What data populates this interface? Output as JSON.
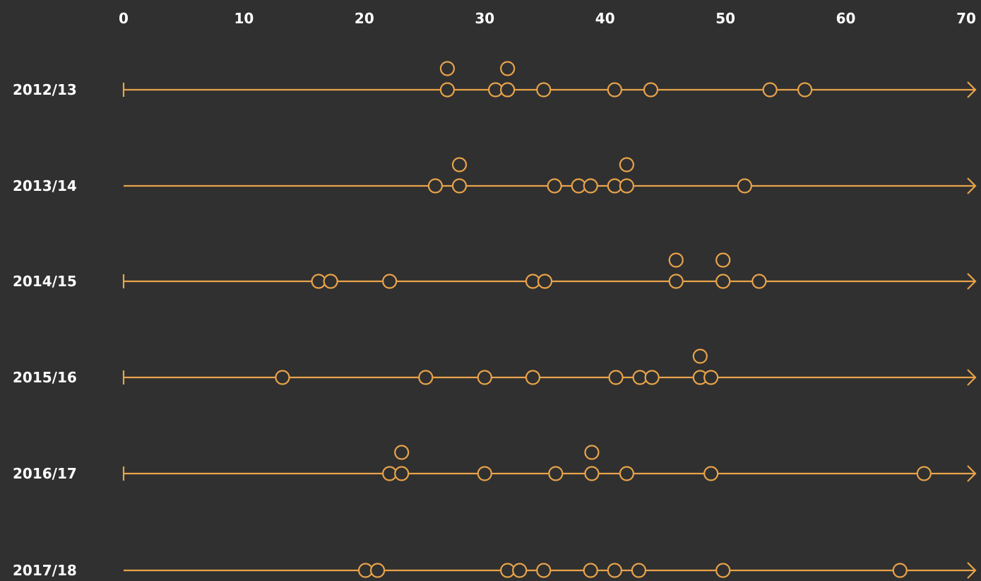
{
  "colors": {
    "background": "#303030",
    "text": "#ffffff",
    "accent": "#e8a34a"
  },
  "chart_data": {
    "type": "scatter",
    "xlim": [
      0,
      70
    ],
    "x_ticks": [
      0,
      10,
      20,
      30,
      40,
      50,
      60,
      70
    ],
    "tick_labels": [
      "0",
      "10",
      "20",
      "30",
      "40",
      "50",
      "60",
      "70"
    ],
    "grid": false,
    "marker": "hollow-circle",
    "series": [
      {
        "label": "2012/13",
        "start_cap": true,
        "points": [
          26.9,
          26.9,
          30.9,
          31.9,
          31.9,
          34.9,
          40.8,
          43.8,
          53.7,
          56.6
        ]
      },
      {
        "label": "2013/14",
        "start_cap": false,
        "points": [
          25.9,
          27.9,
          27.9,
          35.8,
          37.8,
          38.8,
          40.8,
          41.8,
          41.8,
          51.6
        ]
      },
      {
        "label": "2014/15",
        "start_cap": true,
        "points": [
          16.2,
          17.2,
          22.1,
          34.0,
          35.0,
          45.9,
          45.9,
          49.8,
          49.8,
          52.8
        ]
      },
      {
        "label": "2015/16",
        "start_cap": true,
        "points": [
          13.2,
          25.1,
          30.0,
          34.0,
          40.9,
          42.9,
          43.9,
          47.9,
          47.9,
          48.8
        ]
      },
      {
        "label": "2016/17",
        "start_cap": true,
        "points": [
          22.1,
          23.1,
          23.1,
          30.0,
          35.9,
          38.9,
          38.9,
          41.8,
          48.8,
          66.5
        ]
      },
      {
        "label": "2017/18",
        "start_cap": false,
        "points": [
          20.1,
          21.1,
          31.9,
          32.9,
          34.9,
          38.8,
          40.8,
          42.8,
          49.8,
          64.5
        ]
      }
    ]
  }
}
